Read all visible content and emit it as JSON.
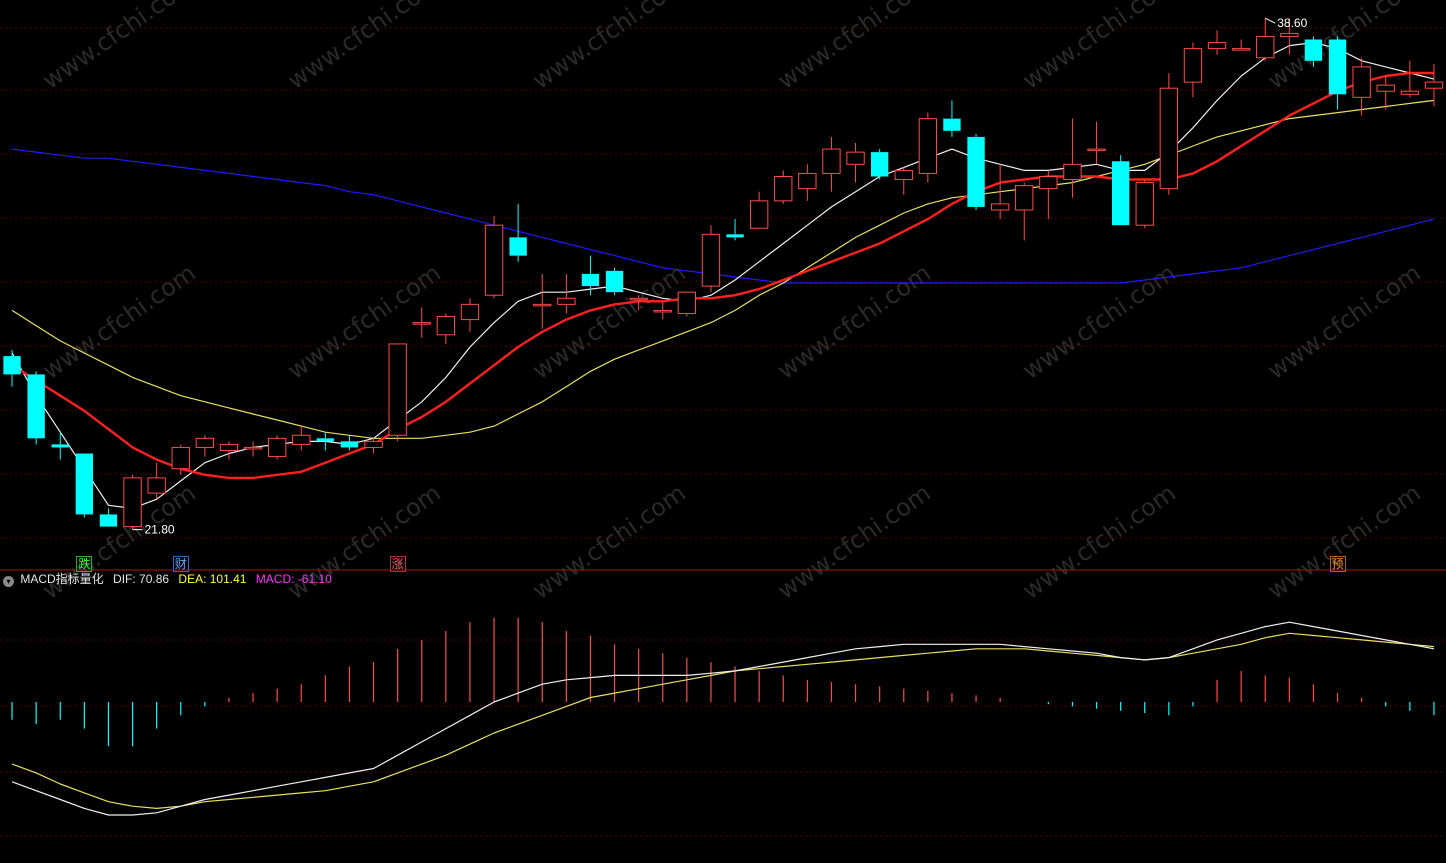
{
  "colors": {
    "background": "#000000",
    "grid": "#5a0000",
    "separator": "#b01010",
    "up_candle": "#ff4a4a",
    "down_candle": "#00ffff",
    "ma_fast": "#f0f0f0",
    "ma_mid": "#ff2020",
    "ma_slow": "#e8e060",
    "ma_long": "#1c1cff",
    "dif_line": "#f0f0f0",
    "dea_line": "#e8e060",
    "macd_positive": "#ff4a4a",
    "macd_negative": "#00ffff"
  },
  "macd_header": {
    "collapse_icon": "chevron-down-icon",
    "name": "MACD指标量化",
    "dif": "DIF: 70.86",
    "dea": "DEA: 101.41",
    "macd": "MACD: -61.10"
  },
  "event_marks": [
    {
      "text": "跌",
      "color": "#33ff33",
      "border": "#33aa33"
    },
    {
      "text": "财",
      "color": "#66aaff",
      "border": "#3366cc"
    },
    {
      "text": "涨",
      "color": "#ff6666",
      "border": "#aa3333"
    },
    {
      "text": "预",
      "color": "#ff9933",
      "border": "#aa6622"
    }
  ],
  "watermark": "www.cfchi.com",
  "chart_data": [
    {
      "type": "candlestick",
      "title": "",
      "yrange": [
        21.0,
        39.0
      ],
      "high_label": "38.60",
      "low_label": "21.80",
      "candles": [
        {
          "o": 27.5,
          "h": 27.7,
          "l": 26.5,
          "c": 26.9
        },
        {
          "o": 26.9,
          "h": 27.0,
          "l": 24.6,
          "c": 24.8
        },
        {
          "o": 24.6,
          "h": 25.0,
          "l": 24.1,
          "c": 24.5
        },
        {
          "o": 24.3,
          "h": 24.3,
          "l": 22.2,
          "c": 22.3
        },
        {
          "o": 22.3,
          "h": 22.5,
          "l": 21.9,
          "c": 21.9
        },
        {
          "o": 21.9,
          "h": 23.6,
          "l": 21.8,
          "c": 23.5
        },
        {
          "o": 23.0,
          "h": 24.0,
          "l": 22.8,
          "c": 23.5
        },
        {
          "o": 23.8,
          "h": 24.6,
          "l": 23.6,
          "c": 24.5
        },
        {
          "o": 24.5,
          "h": 24.9,
          "l": 24.2,
          "c": 24.8
        },
        {
          "o": 24.4,
          "h": 24.7,
          "l": 24.1,
          "c": 24.6
        },
        {
          "o": 24.5,
          "h": 24.7,
          "l": 24.2,
          "c": 24.5
        },
        {
          "o": 24.2,
          "h": 24.9,
          "l": 24.1,
          "c": 24.8
        },
        {
          "o": 24.6,
          "h": 25.2,
          "l": 24.4,
          "c": 24.9
        },
        {
          "o": 24.8,
          "h": 25.0,
          "l": 24.4,
          "c": 24.7
        },
        {
          "o": 24.7,
          "h": 24.9,
          "l": 24.4,
          "c": 24.5
        },
        {
          "o": 24.5,
          "h": 24.8,
          "l": 24.3,
          "c": 24.7
        },
        {
          "o": 24.9,
          "h": 27.9,
          "l": 24.7,
          "c": 27.9
        },
        {
          "o": 28.6,
          "h": 29.1,
          "l": 28.1,
          "c": 28.6
        },
        {
          "o": 28.2,
          "h": 28.9,
          "l": 27.9,
          "c": 28.8
        },
        {
          "o": 28.7,
          "h": 29.4,
          "l": 28.3,
          "c": 29.2
        },
        {
          "o": 29.5,
          "h": 32.1,
          "l": 29.4,
          "c": 31.8
        },
        {
          "o": 31.4,
          "h": 32.5,
          "l": 30.6,
          "c": 30.8
        },
        {
          "o": 29.2,
          "h": 30.2,
          "l": 28.4,
          "c": 29.2
        },
        {
          "o": 29.2,
          "h": 30.2,
          "l": 28.9,
          "c": 29.4
        },
        {
          "o": 30.2,
          "h": 30.8,
          "l": 29.5,
          "c": 29.8
        },
        {
          "o": 30.3,
          "h": 30.4,
          "l": 29.5,
          "c": 29.6
        },
        {
          "o": 29.4,
          "h": 29.5,
          "l": 29.0,
          "c": 29.4
        },
        {
          "o": 29.0,
          "h": 29.3,
          "l": 28.7,
          "c": 29.0
        },
        {
          "o": 28.9,
          "h": 29.5,
          "l": 28.8,
          "c": 29.6
        },
        {
          "o": 29.8,
          "h": 31.8,
          "l": 29.6,
          "c": 31.5
        },
        {
          "o": 31.5,
          "h": 32.0,
          "l": 31.3,
          "c": 31.4
        },
        {
          "o": 31.7,
          "h": 32.9,
          "l": 31.7,
          "c": 32.6
        },
        {
          "o": 32.6,
          "h": 33.6,
          "l": 32.5,
          "c": 33.4
        },
        {
          "o": 33.0,
          "h": 33.8,
          "l": 32.6,
          "c": 33.5
        },
        {
          "o": 33.5,
          "h": 34.7,
          "l": 32.9,
          "c": 34.3
        },
        {
          "o": 33.8,
          "h": 34.5,
          "l": 33.2,
          "c": 34.2
        },
        {
          "o": 34.2,
          "h": 34.3,
          "l": 33.3,
          "c": 33.4
        },
        {
          "o": 33.3,
          "h": 33.7,
          "l": 32.8,
          "c": 33.6
        },
        {
          "o": 33.5,
          "h": 35.5,
          "l": 33.2,
          "c": 35.3
        },
        {
          "o": 35.3,
          "h": 35.9,
          "l": 34.7,
          "c": 34.9
        },
        {
          "o": 34.7,
          "h": 34.8,
          "l": 32.3,
          "c": 32.4
        },
        {
          "o": 32.3,
          "h": 33.8,
          "l": 32.0,
          "c": 32.5
        },
        {
          "o": 32.3,
          "h": 33.2,
          "l": 31.3,
          "c": 33.1
        },
        {
          "o": 33.0,
          "h": 33.6,
          "l": 32.0,
          "c": 33.4
        },
        {
          "o": 33.3,
          "h": 35.3,
          "l": 32.7,
          "c": 33.8
        },
        {
          "o": 34.3,
          "h": 35.2,
          "l": 33.8,
          "c": 34.3
        },
        {
          "o": 33.9,
          "h": 34.1,
          "l": 31.8,
          "c": 31.8
        },
        {
          "o": 31.8,
          "h": 33.3,
          "l": 31.7,
          "c": 33.2
        },
        {
          "o": 33.0,
          "h": 36.8,
          "l": 32.8,
          "c": 36.3
        },
        {
          "o": 36.5,
          "h": 37.8,
          "l": 36.0,
          "c": 37.6
        },
        {
          "o": 37.6,
          "h": 38.2,
          "l": 37.4,
          "c": 37.8
        },
        {
          "o": 37.6,
          "h": 37.9,
          "l": 37.6,
          "c": 37.6
        },
        {
          "o": 37.3,
          "h": 38.6,
          "l": 37.2,
          "c": 38.0
        },
        {
          "o": 38.0,
          "h": 38.6,
          "l": 37.4,
          "c": 38.1
        },
        {
          "o": 37.9,
          "h": 38.0,
          "l": 37.0,
          "c": 37.2
        },
        {
          "o": 37.9,
          "h": 38.0,
          "l": 35.6,
          "c": 36.1
        },
        {
          "o": 36.0,
          "h": 37.3,
          "l": 35.4,
          "c": 37.0
        },
        {
          "o": 36.2,
          "h": 36.7,
          "l": 35.6,
          "c": 36.4
        },
        {
          "o": 36.1,
          "h": 37.2,
          "l": 36.0,
          "c": 36.2
        },
        {
          "o": 36.3,
          "h": 37.1,
          "l": 35.7,
          "c": 36.5
        }
      ],
      "ma_fast": [
        27.6,
        26.2,
        25.0,
        23.8,
        22.6,
        22.5,
        22.8,
        23.4,
        24.0,
        24.3,
        24.5,
        24.6,
        24.7,
        24.7,
        24.6,
        24.8,
        25.4,
        26.0,
        26.8,
        27.8,
        28.6,
        29.3,
        29.6,
        29.6,
        29.7,
        29.8,
        29.6,
        29.4,
        29.3,
        29.5,
        30.0,
        30.6,
        31.2,
        31.8,
        32.4,
        32.9,
        33.4,
        33.7,
        34.0,
        34.3,
        34.0,
        33.8,
        33.6,
        33.6,
        33.7,
        33.8,
        33.6,
        33.6,
        34.2,
        35.0,
        35.9,
        36.7,
        37.3,
        37.7,
        37.8,
        37.6,
        37.2,
        37.0,
        36.8,
        36.6
      ],
      "ma_mid": [
        27.2,
        26.7,
        26.2,
        25.7,
        25.1,
        24.5,
        24.1,
        23.8,
        23.6,
        23.5,
        23.5,
        23.6,
        23.7,
        24.0,
        24.3,
        24.6,
        25.1,
        25.5,
        26.0,
        26.6,
        27.2,
        27.8,
        28.3,
        28.7,
        29.0,
        29.2,
        29.3,
        29.3,
        29.4,
        29.4,
        29.5,
        29.7,
        30.0,
        30.3,
        30.6,
        30.9,
        31.2,
        31.6,
        32.0,
        32.5,
        32.9,
        33.2,
        33.3,
        33.4,
        33.4,
        33.4,
        33.3,
        33.3,
        33.3,
        33.5,
        33.9,
        34.4,
        34.9,
        35.4,
        35.8,
        36.2,
        36.5,
        36.7,
        36.8,
        36.8
      ],
      "ma_slow": [
        29.0,
        28.5,
        28.0,
        27.6,
        27.2,
        26.8,
        26.5,
        26.2,
        26.0,
        25.8,
        25.6,
        25.4,
        25.2,
        25.0,
        24.9,
        24.8,
        24.8,
        24.8,
        24.9,
        25.0,
        25.2,
        25.6,
        26.0,
        26.5,
        27.0,
        27.4,
        27.7,
        28.0,
        28.3,
        28.6,
        29.0,
        29.5,
        29.9,
        30.4,
        30.9,
        31.4,
        31.8,
        32.2,
        32.5,
        32.7,
        32.8,
        32.9,
        33.0,
        33.1,
        33.2,
        33.4,
        33.6,
        33.8,
        34.1,
        34.4,
        34.7,
        34.9,
        35.1,
        35.3,
        35.4,
        35.5,
        35.6,
        35.7,
        35.8,
        35.9
      ],
      "ma_long": [
        34.3,
        34.2,
        34.1,
        34.0,
        34.0,
        33.9,
        33.8,
        33.7,
        33.6,
        33.5,
        33.4,
        33.3,
        33.2,
        33.1,
        32.9,
        32.8,
        32.6,
        32.4,
        32.2,
        32.0,
        31.8,
        31.6,
        31.4,
        31.2,
        31.0,
        30.8,
        30.6,
        30.4,
        30.3,
        30.2,
        30.1,
        30.0,
        29.9,
        29.9,
        29.9,
        29.9,
        29.9,
        29.9,
        29.9,
        29.9,
        29.9,
        29.9,
        29.9,
        29.9,
        29.9,
        29.9,
        29.9,
        30.0,
        30.1,
        30.2,
        30.3,
        30.4,
        30.6,
        30.8,
        31.0,
        31.2,
        31.4,
        31.6,
        31.8,
        32.0
      ],
      "event_mark_indices": [
        3,
        7,
        16,
        55
      ]
    },
    {
      "type": "bar+line",
      "title": "MACD指标量化",
      "yrange": [
        -3.0,
        2.3
      ],
      "dif": [
        -1.8,
        -2.0,
        -2.2,
        -2.4,
        -2.55,
        -2.55,
        -2.5,
        -2.35,
        -2.2,
        -2.1,
        -2.0,
        -1.9,
        -1.8,
        -1.7,
        -1.6,
        -1.5,
        -1.2,
        -0.9,
        -0.6,
        -0.3,
        0.0,
        0.2,
        0.4,
        0.5,
        0.55,
        0.6,
        0.6,
        0.6,
        0.6,
        0.65,
        0.7,
        0.8,
        0.9,
        1.0,
        1.1,
        1.2,
        1.25,
        1.3,
        1.3,
        1.3,
        1.3,
        1.3,
        1.25,
        1.2,
        1.15,
        1.1,
        1.0,
        0.95,
        1.0,
        1.2,
        1.4,
        1.55,
        1.7,
        1.8,
        1.7,
        1.6,
        1.5,
        1.4,
        1.3,
        1.2
      ],
      "dea": [
        -1.4,
        -1.6,
        -1.85,
        -2.05,
        -2.25,
        -2.35,
        -2.4,
        -2.35,
        -2.25,
        -2.2,
        -2.15,
        -2.1,
        -2.05,
        -2.0,
        -1.9,
        -1.8,
        -1.6,
        -1.4,
        -1.2,
        -0.95,
        -0.7,
        -0.5,
        -0.3,
        -0.1,
        0.1,
        0.2,
        0.3,
        0.4,
        0.5,
        0.6,
        0.7,
        0.75,
        0.8,
        0.85,
        0.9,
        0.95,
        1.0,
        1.05,
        1.1,
        1.15,
        1.2,
        1.2,
        1.2,
        1.15,
        1.1,
        1.05,
        1.0,
        0.95,
        1.0,
        1.1,
        1.2,
        1.3,
        1.45,
        1.55,
        1.5,
        1.45,
        1.4,
        1.35,
        1.3,
        1.25
      ],
      "macd": [
        -0.4,
        -0.5,
        -0.4,
        -0.6,
        -1.0,
        -1.0,
        -0.6,
        -0.3,
        -0.1,
        0.1,
        0.2,
        0.3,
        0.4,
        0.6,
        0.8,
        0.9,
        1.2,
        1.4,
        1.6,
        1.8,
        1.9,
        1.9,
        1.8,
        1.6,
        1.5,
        1.3,
        1.2,
        1.1,
        1.0,
        0.9,
        0.8,
        0.7,
        0.6,
        0.5,
        0.45,
        0.4,
        0.35,
        0.3,
        0.25,
        0.2,
        0.15,
        0.1,
        0.0,
        -0.05,
        -0.1,
        -0.15,
        -0.2,
        -0.25,
        -0.3,
        -0.1,
        0.5,
        0.7,
        0.6,
        0.55,
        0.4,
        0.2,
        0.1,
        -0.1,
        -0.2,
        -0.3
      ]
    }
  ]
}
